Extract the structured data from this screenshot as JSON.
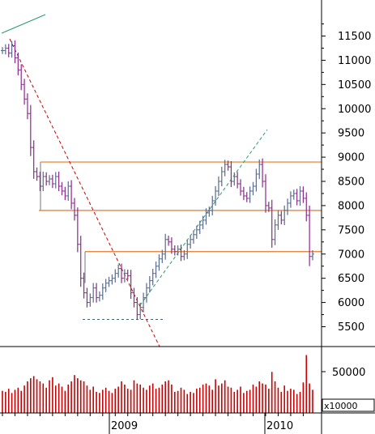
{
  "chart_data": {
    "type": "ohlc",
    "price_axis": {
      "ticks": [
        5500,
        6000,
        6500,
        7000,
        7500,
        8000,
        8500,
        9000,
        9500,
        10000,
        10500,
        11000,
        11500
      ],
      "tick_labels": [
        "5500",
        "6000",
        "6500",
        "7000",
        "7500",
        "8000",
        "8500",
        "9000",
        "9500",
        "10000",
        "10500",
        "11000",
        "11500"
      ],
      "ylim": [
        5200,
        11900
      ]
    },
    "volume_axis": {
      "ticks": [
        50000
      ],
      "tick_labels": [
        "50000"
      ],
      "scale_label": "x10000",
      "ylim": [
        0,
        60000
      ]
    },
    "x_axis": {
      "labels": [
        "2009",
        "2010"
      ]
    },
    "colors": {
      "up": "#5a6a8a",
      "down": "#8a2a8a",
      "volume": "#cc0000",
      "box": "#e8782a",
      "trend_down": "#cc0000",
      "trend_up": "#2a9a6a",
      "support": "#446666",
      "top_trend": "#2a9a6a"
    },
    "horizontal_levels": [
      8900,
      7900,
      7050,
      5650
    ],
    "weekly_closes": [
      11200,
      11250,
      11150,
      11300,
      11050,
      10800,
      10500,
      10200,
      9900,
      9200,
      8700,
      8600,
      8400,
      8600,
      8500,
      8550,
      8450,
      8600,
      8400,
      8300,
      8200,
      8400,
      8050,
      7800,
      7200,
      6500,
      6200,
      6000,
      6100,
      6300,
      6100,
      6150,
      6300,
      6400,
      6450,
      6500,
      6600,
      6700,
      6500,
      6600,
      6550,
      6200,
      6000,
      5750,
      5900,
      6100,
      6300,
      6450,
      6600,
      6750,
      6900,
      7000,
      7300,
      7250,
      7100,
      7050,
      7100,
      6950,
      7000,
      7200,
      7300,
      7400,
      7500,
      7600,
      7700,
      7850,
      7900,
      8100,
      8300,
      8500,
      8700,
      8850,
      8800,
      8500,
      8600,
      8450,
      8300,
      8200,
      8150,
      8300,
      8400,
      8650,
      8850,
      8500,
      8000,
      7950,
      7300,
      7600,
      7800,
      7700,
      7900,
      8050,
      8200,
      8250,
      8100,
      8300,
      8150,
      7800,
      6950,
      7000
    ],
    "weekly_volumes": [
      21000,
      20000,
      23000,
      19000,
      22000,
      24000,
      21000,
      26000,
      30000,
      33000,
      35000,
      32000,
      30000,
      28000,
      24000,
      31000,
      34000,
      26000,
      28000,
      25000,
      21000,
      27000,
      30000,
      36000,
      33000,
      31000,
      30000,
      26000,
      22000,
      25000,
      20000,
      19000,
      22000,
      24000,
      21000,
      19000,
      23000,
      25000,
      30000,
      27000,
      23000,
      22000,
      31000,
      28000,
      27000,
      24000,
      22000,
      26000,
      28000,
      23000,
      24000,
      27000,
      30000,
      31000,
      27000,
      20000,
      21000,
      24000,
      22000,
      18000,
      20000,
      19000,
      23000,
      24000,
      27000,
      28000,
      26000,
      22000,
      32000,
      26000,
      28000,
      31000,
      25000,
      24000,
      20000,
      22000,
      25000,
      19000,
      21000,
      22000,
      27000,
      25000,
      30000,
      28000,
      27000,
      23000,
      39000,
      30000,
      24000,
      20000,
      26000,
      21000,
      23000,
      22000,
      18000,
      20000,
      29000,
      55000,
      28000,
      22000
    ]
  }
}
